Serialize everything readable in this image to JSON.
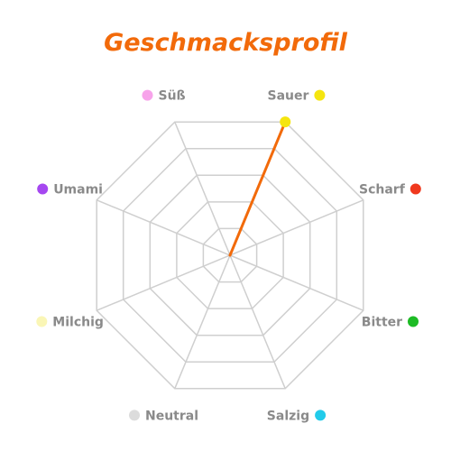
{
  "chart_data": {
    "type": "radar",
    "title": "Geschmacksprofil",
    "axes": [
      {
        "label": "Sauer",
        "color": "#f5e50f"
      },
      {
        "label": "Scharf",
        "color": "#f0391e"
      },
      {
        "label": "Bitter",
        "color": "#1dbb25"
      },
      {
        "label": "Salzig",
        "color": "#22cbea"
      },
      {
        "label": "Neutral",
        "color": "#dcdcdc"
      },
      {
        "label": "Milchig",
        "color": "#faf6b6"
      },
      {
        "label": "Umami",
        "color": "#a547f0"
      },
      {
        "label": "Süß",
        "color": "#f7a3ea"
      }
    ],
    "values": [
      5,
      0,
      0,
      0,
      0,
      0,
      0,
      0
    ],
    "max": 5,
    "grid_levels": 5,
    "series_color": "#f26a0a",
    "title_color": "#f26a0a",
    "grid_color": "#cfcfcf",
    "label_color": "#8a8a8a"
  }
}
